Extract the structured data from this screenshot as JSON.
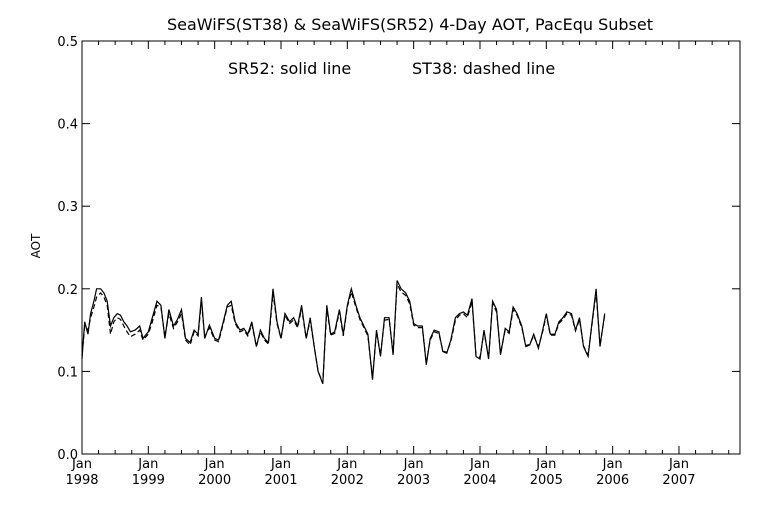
{
  "chart_data": {
    "type": "line",
    "title": "SeaWiFS(ST38) & SeaWiFS(SR52) 4-Day AOT, PacEqu Subset",
    "annotation_left": "SR52: solid line",
    "annotation_right": "ST38: dashed line",
    "ylabel": "AOT",
    "xlabel": "",
    "ylim": [
      0.0,
      0.5
    ],
    "xlim": [
      1998.0,
      2007.92
    ],
    "y_ticks": [
      "0.0",
      "0.1",
      "0.2",
      "0.3",
      "0.4",
      "0.5"
    ],
    "x_ticks": [
      {
        "month": "Jan",
        "year": "1998"
      },
      {
        "month": "Jan",
        "year": "1999"
      },
      {
        "month": "Jan",
        "year": "2000"
      },
      {
        "month": "Jan",
        "year": "2001"
      },
      {
        "month": "Jan",
        "year": "2002"
      },
      {
        "month": "Jan",
        "year": "2003"
      },
      {
        "month": "Jan",
        "year": "2004"
      },
      {
        "month": "Jan",
        "year": "2005"
      },
      {
        "month": "Jan",
        "year": "2006"
      },
      {
        "month": "Jan",
        "year": "2007"
      }
    ],
    "grid": false,
    "series": [
      {
        "name": "SR52",
        "style": "solid",
        "points": [
          [
            1998.0,
            0.115
          ],
          [
            1998.04,
            0.16
          ],
          [
            1998.09,
            0.145
          ],
          [
            1998.13,
            0.17
          ],
          [
            1998.18,
            0.185
          ],
          [
            1998.22,
            0.2
          ],
          [
            1998.28,
            0.2
          ],
          [
            1998.33,
            0.195
          ],
          [
            1998.38,
            0.185
          ],
          [
            1998.43,
            0.155
          ],
          [
            1998.48,
            0.165
          ],
          [
            1998.53,
            0.17
          ],
          [
            1998.58,
            0.168
          ],
          [
            1998.63,
            0.16
          ],
          [
            1998.68,
            0.155
          ],
          [
            1998.73,
            0.148
          ],
          [
            1998.8,
            0.15
          ],
          [
            1998.87,
            0.155
          ],
          [
            1998.92,
            0.14
          ],
          [
            1999.0,
            0.148
          ],
          [
            1999.06,
            0.165
          ],
          [
            1999.13,
            0.185
          ],
          [
            1999.19,
            0.18
          ],
          [
            1999.25,
            0.14
          ],
          [
            1999.31,
            0.175
          ],
          [
            1999.38,
            0.155
          ],
          [
            1999.44,
            0.163
          ],
          [
            1999.5,
            0.175
          ],
          [
            1999.56,
            0.14
          ],
          [
            1999.63,
            0.135
          ],
          [
            1999.69,
            0.15
          ],
          [
            1999.75,
            0.145
          ],
          [
            1999.8,
            0.19
          ],
          [
            1999.85,
            0.14
          ],
          [
            1999.92,
            0.156
          ],
          [
            2000.0,
            0.14
          ],
          [
            2000.06,
            0.138
          ],
          [
            2000.13,
            0.16
          ],
          [
            2000.19,
            0.18
          ],
          [
            2000.25,
            0.185
          ],
          [
            2000.31,
            0.16
          ],
          [
            2000.38,
            0.15
          ],
          [
            2000.44,
            0.152
          ],
          [
            2000.5,
            0.145
          ],
          [
            2000.56,
            0.16
          ],
          [
            2000.63,
            0.13
          ],
          [
            2000.69,
            0.15
          ],
          [
            2000.75,
            0.14
          ],
          [
            2000.81,
            0.135
          ],
          [
            2000.88,
            0.2
          ],
          [
            2000.94,
            0.16
          ],
          [
            2001.0,
            0.14
          ],
          [
            2001.06,
            0.17
          ],
          [
            2001.13,
            0.16
          ],
          [
            2001.19,
            0.165
          ],
          [
            2001.25,
            0.155
          ],
          [
            2001.31,
            0.18
          ],
          [
            2001.38,
            0.14
          ],
          [
            2001.44,
            0.165
          ],
          [
            2001.5,
            0.13
          ],
          [
            2001.56,
            0.1
          ],
          [
            2001.63,
            0.085
          ],
          [
            2001.69,
            0.18
          ],
          [
            2001.75,
            0.145
          ],
          [
            2001.81,
            0.148
          ],
          [
            2001.88,
            0.175
          ],
          [
            2001.94,
            0.145
          ],
          [
            2002.0,
            0.18
          ],
          [
            2002.06,
            0.2
          ],
          [
            2002.13,
            0.18
          ],
          [
            2002.19,
            0.165
          ],
          [
            2002.25,
            0.155
          ],
          [
            2002.31,
            0.145
          ],
          [
            2002.38,
            0.09
          ],
          [
            2002.44,
            0.15
          ],
          [
            2002.5,
            0.118
          ],
          [
            2002.56,
            0.165
          ],
          [
            2002.63,
            0.165
          ],
          [
            2002.69,
            0.12
          ],
          [
            2002.75,
            0.21
          ],
          [
            2002.81,
            0.2
          ],
          [
            2002.88,
            0.195
          ],
          [
            2002.94,
            0.185
          ],
          [
            2003.0,
            0.158
          ],
          [
            2003.06,
            0.155
          ],
          [
            2003.13,
            0.155
          ],
          [
            2003.19,
            0.108
          ],
          [
            2003.25,
            0.14
          ],
          [
            2003.31,
            0.15
          ],
          [
            2003.38,
            0.148
          ],
          [
            2003.44,
            0.124
          ],
          [
            2003.5,
            0.122
          ],
          [
            2003.56,
            0.138
          ],
          [
            2003.63,
            0.165
          ],
          [
            2003.69,
            0.17
          ],
          [
            2003.75,
            0.172
          ],
          [
            2003.81,
            0.168
          ],
          [
            2003.88,
            0.188
          ],
          [
            2003.94,
            0.118
          ],
          [
            2004.0,
            0.115
          ],
          [
            2004.06,
            0.15
          ],
          [
            2004.13,
            0.115
          ],
          [
            2004.19,
            0.185
          ],
          [
            2004.25,
            0.175
          ],
          [
            2004.31,
            0.12
          ],
          [
            2004.38,
            0.152
          ],
          [
            2004.44,
            0.148
          ],
          [
            2004.5,
            0.178
          ],
          [
            2004.56,
            0.17
          ],
          [
            2004.63,
            0.155
          ],
          [
            2004.69,
            0.13
          ],
          [
            2004.75,
            0.132
          ],
          [
            2004.81,
            0.145
          ],
          [
            2004.88,
            0.128
          ],
          [
            2004.94,
            0.148
          ],
          [
            2005.0,
            0.17
          ],
          [
            2005.06,
            0.145
          ],
          [
            2005.13,
            0.145
          ],
          [
            2005.19,
            0.16
          ],
          [
            2005.25,
            0.165
          ],
          [
            2005.31,
            0.172
          ],
          [
            2005.38,
            0.17
          ],
          [
            2005.44,
            0.15
          ],
          [
            2005.5,
            0.165
          ],
          [
            2005.56,
            0.13
          ],
          [
            2005.63,
            0.118
          ],
          [
            2005.69,
            0.16
          ],
          [
            2005.75,
            0.2
          ],
          [
            2005.81,
            0.13
          ],
          [
            2005.88,
            0.17
          ]
        ]
      },
      {
        "name": "ST38",
        "style": "dashed",
        "points": [
          [
            1998.0,
            0.12
          ],
          [
            1998.04,
            0.155
          ],
          [
            1998.09,
            0.15
          ],
          [
            1998.13,
            0.165
          ],
          [
            1998.18,
            0.178
          ],
          [
            1998.22,
            0.19
          ],
          [
            1998.28,
            0.195
          ],
          [
            1998.33,
            0.19
          ],
          [
            1998.38,
            0.18
          ],
          [
            1998.43,
            0.145
          ],
          [
            1998.48,
            0.16
          ],
          [
            1998.53,
            0.165
          ],
          [
            1998.58,
            0.163
          ],
          [
            1998.63,
            0.155
          ],
          [
            1998.68,
            0.148
          ],
          [
            1998.73,
            0.142
          ],
          [
            1998.8,
            0.145
          ],
          [
            1998.87,
            0.15
          ],
          [
            1998.92,
            0.138
          ],
          [
            1999.0,
            0.145
          ],
          [
            1999.06,
            0.16
          ],
          [
            1999.13,
            0.18
          ],
          [
            1999.19,
            0.178
          ],
          [
            1999.25,
            0.142
          ],
          [
            1999.31,
            0.17
          ],
          [
            1999.38,
            0.152
          ],
          [
            1999.44,
            0.16
          ],
          [
            1999.5,
            0.17
          ],
          [
            1999.56,
            0.138
          ],
          [
            1999.63,
            0.132
          ],
          [
            1999.69,
            0.148
          ],
          [
            1999.75,
            0.143
          ],
          [
            1999.8,
            0.185
          ],
          [
            1999.85,
            0.142
          ],
          [
            1999.92,
            0.153
          ],
          [
            2000.0,
            0.138
          ],
          [
            2000.06,
            0.136
          ],
          [
            2000.13,
            0.158
          ],
          [
            2000.19,
            0.178
          ],
          [
            2000.25,
            0.18
          ],
          [
            2000.31,
            0.158
          ],
          [
            2000.38,
            0.148
          ],
          [
            2000.44,
            0.15
          ],
          [
            2000.5,
            0.143
          ],
          [
            2000.56,
            0.157
          ],
          [
            2000.63,
            0.13
          ],
          [
            2000.69,
            0.148
          ],
          [
            2000.75,
            0.138
          ],
          [
            2000.81,
            0.133
          ],
          [
            2000.88,
            0.195
          ],
          [
            2000.94,
            0.158
          ],
          [
            2001.0,
            0.14
          ],
          [
            2001.06,
            0.168
          ],
          [
            2001.13,
            0.158
          ],
          [
            2001.19,
            0.162
          ],
          [
            2001.25,
            0.153
          ],
          [
            2001.31,
            0.176
          ],
          [
            2001.38,
            0.14
          ],
          [
            2001.44,
            0.162
          ],
          [
            2001.5,
            0.13
          ],
          [
            2001.56,
            0.1
          ],
          [
            2001.63,
            0.086
          ],
          [
            2001.69,
            0.176
          ],
          [
            2001.75,
            0.144
          ],
          [
            2001.81,
            0.146
          ],
          [
            2001.88,
            0.172
          ],
          [
            2001.94,
            0.143
          ],
          [
            2002.0,
            0.178
          ],
          [
            2002.06,
            0.196
          ],
          [
            2002.13,
            0.178
          ],
          [
            2002.19,
            0.163
          ],
          [
            2002.25,
            0.153
          ],
          [
            2002.31,
            0.143
          ],
          [
            2002.38,
            0.092
          ],
          [
            2002.44,
            0.148
          ],
          [
            2002.5,
            0.12
          ],
          [
            2002.56,
            0.162
          ],
          [
            2002.63,
            0.163
          ],
          [
            2002.69,
            0.122
          ],
          [
            2002.75,
            0.206
          ],
          [
            2002.81,
            0.196
          ],
          [
            2002.88,
            0.192
          ],
          [
            2002.94,
            0.182
          ],
          [
            2003.0,
            0.156
          ],
          [
            2003.06,
            0.153
          ],
          [
            2003.13,
            0.153
          ],
          [
            2003.19,
            0.11
          ],
          [
            2003.25,
            0.138
          ],
          [
            2003.31,
            0.148
          ],
          [
            2003.38,
            0.146
          ],
          [
            2003.44,
            0.125
          ],
          [
            2003.5,
            0.123
          ],
          [
            2003.56,
            0.136
          ],
          [
            2003.63,
            0.162
          ],
          [
            2003.69,
            0.168
          ],
          [
            2003.75,
            0.17
          ],
          [
            2003.81,
            0.165
          ],
          [
            2003.88,
            0.185
          ],
          [
            2003.94,
            0.12
          ],
          [
            2004.0,
            0.117
          ],
          [
            2004.06,
            0.148
          ],
          [
            2004.13,
            0.117
          ],
          [
            2004.19,
            0.182
          ],
          [
            2004.25,
            0.172
          ],
          [
            2004.31,
            0.122
          ],
          [
            2004.38,
            0.15
          ],
          [
            2004.44,
            0.146
          ],
          [
            2004.5,
            0.175
          ],
          [
            2004.56,
            0.168
          ],
          [
            2004.63,
            0.153
          ],
          [
            2004.69,
            0.131
          ],
          [
            2004.75,
            0.133
          ],
          [
            2004.81,
            0.143
          ],
          [
            2004.88,
            0.13
          ],
          [
            2004.94,
            0.146
          ],
          [
            2005.0,
            0.168
          ],
          [
            2005.06,
            0.144
          ],
          [
            2005.13,
            0.144
          ],
          [
            2005.19,
            0.158
          ],
          [
            2005.25,
            0.163
          ],
          [
            2005.31,
            0.17
          ],
          [
            2005.38,
            0.168
          ],
          [
            2005.44,
            0.149
          ],
          [
            2005.5,
            0.163
          ],
          [
            2005.56,
            0.131
          ],
          [
            2005.63,
            0.12
          ],
          [
            2005.69,
            0.158
          ],
          [
            2005.75,
            0.196
          ],
          [
            2005.81,
            0.132
          ],
          [
            2005.88,
            0.168
          ]
        ]
      }
    ]
  }
}
